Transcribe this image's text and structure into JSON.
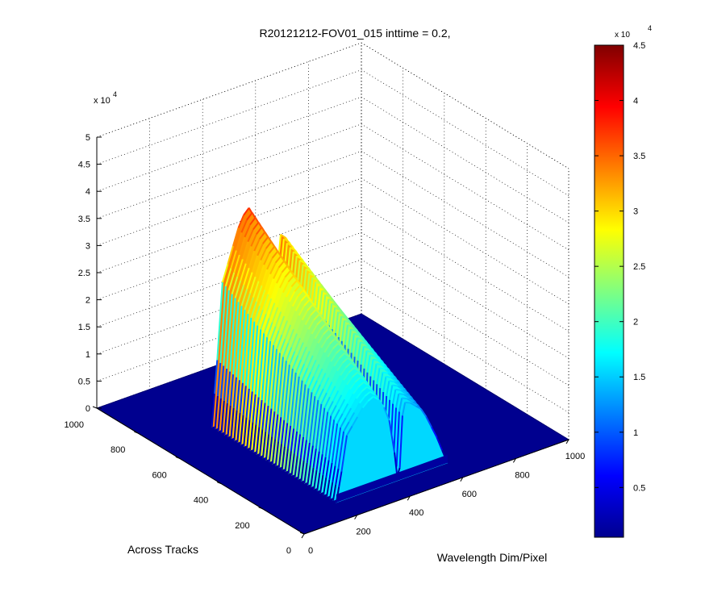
{
  "chart_data": {
    "type": "surface",
    "title": "R20121212-FOV01_015 inttime = 0.2,",
    "xlabel": "Wavelength Dim/Pixel",
    "ylabel": "Across Tracks",
    "zlabel": "",
    "x_ticks": [
      "0",
      "200",
      "400",
      "600",
      "800",
      "1000"
    ],
    "y_ticks": [
      "0",
      "200",
      "400",
      "600",
      "800",
      "1000"
    ],
    "z_ticks": [
      "0",
      "0.5",
      "1",
      "1.5",
      "2",
      "2.5",
      "3",
      "3.5",
      "4",
      "4.5",
      "5"
    ],
    "z_exponent_base": "x 10",
    "z_exponent_power": "4",
    "xlim": [
      0,
      1000
    ],
    "ylim": [
      0,
      1000
    ],
    "zlim": [
      0,
      50000
    ],
    "grid": true,
    "colormap": "jet",
    "colorbar": {
      "ticks": [
        "0.5",
        "1",
        "1.5",
        "2",
        "2.5",
        "3",
        "3.5",
        "4",
        "4.5"
      ],
      "exponent_base": "x 10",
      "exponent_power": "4",
      "range": [
        500,
        45000
      ]
    },
    "surface": {
      "x_range": [
        200,
        620
      ],
      "y_range": [
        100,
        700
      ],
      "profile_x": [
        200,
        210,
        220,
        240,
        260,
        280,
        300,
        320,
        340,
        360,
        380,
        400,
        420,
        430,
        440,
        450,
        460,
        480,
        500,
        520,
        540,
        560,
        580,
        600,
        620
      ],
      "profile_z": [
        0,
        6000,
        12000,
        26000,
        29000,
        32000,
        35000,
        37000,
        38000,
        36000,
        32000,
        26000,
        12000,
        2000,
        5000,
        26000,
        31000,
        30000,
        28000,
        26000,
        22000,
        17000,
        12000,
        6000,
        0
      ],
      "max_value": 38000
    }
  },
  "colors": {
    "background": "#ffffff",
    "floor": "#00008f",
    "floor_edge": "#000070",
    "grid": "#000000"
  }
}
